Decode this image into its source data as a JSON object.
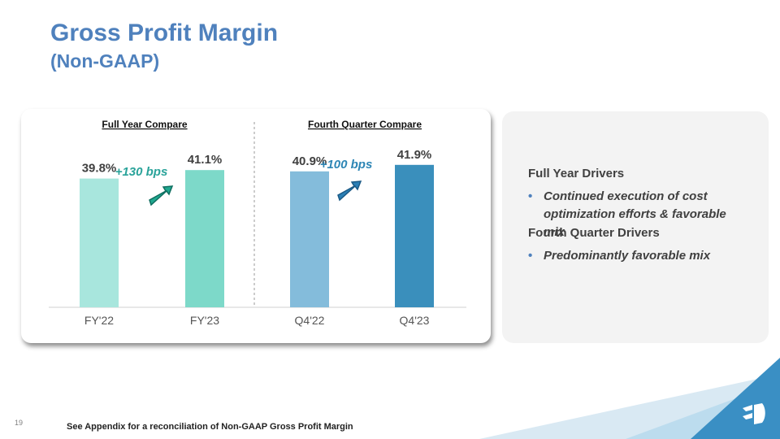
{
  "slide": {
    "title": "Gross Profit Margin",
    "subtitle": "(Non-GAAP)",
    "page_number": "19",
    "footnote": "See Appendix for a reconciliation of Non-GAAP Gross Profit Margin"
  },
  "chart_data": {
    "type": "bar",
    "panels": [
      {
        "title": "Full Year Compare",
        "change_label": "+130 bps",
        "change_color": "#2aa39a"
      },
      {
        "title": "Fourth Quarter Compare",
        "change_label": "+100 bps",
        "change_color": "#2e86b5"
      }
    ],
    "categories": [
      "FY'22",
      "FY'23",
      "Q4'22",
      "Q4'23"
    ],
    "values": [
      39.8,
      41.1,
      40.9,
      41.9
    ],
    "value_labels": [
      "39.8%",
      "41.1%",
      "40.9%",
      "41.9%"
    ],
    "bar_colors": [
      "#a8e6dd",
      "#7dd9c9",
      "#84bcdb",
      "#3a8fbc"
    ],
    "unit": "%",
    "ylim": [
      20,
      43
    ]
  },
  "drivers": {
    "full_year_heading": "Full Year Drivers",
    "full_year_items": [
      "Continued execution of cost optimization efforts & favorable mix"
    ],
    "fourth_quarter_heading": "Fourth Quarter Drivers",
    "fourth_quarter_items": [
      "Predominantly favorable mix"
    ],
    "bullet": "•"
  },
  "colors": {
    "title": "#4f81bd",
    "arrow_fill": "#1fa88f",
    "arrow_fill_2": "#2b7fb5",
    "corner_light": "#bcdcee",
    "corner_dark": "#3a8fc4"
  }
}
